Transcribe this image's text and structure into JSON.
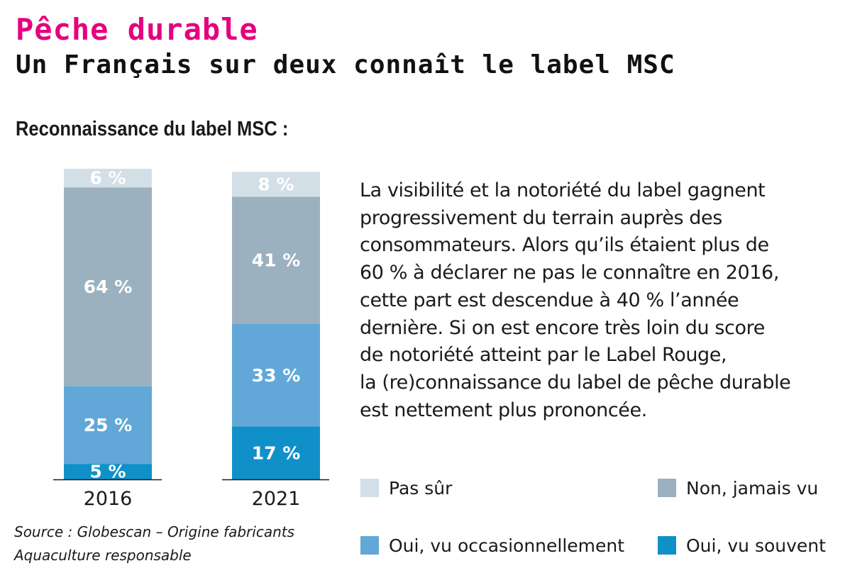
{
  "header": {
    "kicker": "Pêche durable",
    "headline": "Un Français sur deux connaît le label MSC"
  },
  "chart_data": {
    "type": "bar",
    "stacked": true,
    "title": "Reconnaissance du label MSC :",
    "categories": [
      "2016",
      "2021"
    ],
    "ylim": [
      0,
      100
    ],
    "unit": "%",
    "series": [
      {
        "name": "Oui, vu souvent",
        "values": [
          5,
          17
        ],
        "color": "#1090c8",
        "labels": [
          "5 %",
          "17 %"
        ]
      },
      {
        "name": "Oui, vu occasionnellement",
        "values": [
          25,
          33
        ],
        "color": "#61a8d9",
        "labels": [
          "25 %",
          "33 %"
        ]
      },
      {
        "name": "Non, jamais vu",
        "values": [
          64,
          41
        ],
        "color": "#9cb1c0",
        "labels": [
          "64 %",
          "41 %"
        ]
      },
      {
        "name": "Pas sûr",
        "values": [
          6,
          8
        ],
        "color": "#d2dfe7",
        "labels": [
          "6 %",
          "8 %"
        ]
      }
    ],
    "legend_position": "bottom-right"
  },
  "body_text": {
    "lines": [
      "La visibilité et la notoriété du label gagnent",
      "progressivement du terrain auprès des",
      "consommateurs. Alors qu’ils étaient plus de",
      "60 % à déclarer ne pas le connaître en 2016,",
      "cette part est descendue à 40 % l’année",
      "dernière. Si on est encore très loin du score",
      "de notoriété atteint par le Label Rouge,",
      "la (re)connaissance du label de pêche durable",
      "est nettement plus prononcée."
    ]
  },
  "legend": {
    "items": [
      {
        "label": "Pas sûr",
        "color": "#d2dfe7"
      },
      {
        "label": "Non, jamais vu",
        "color": "#9cb1c0"
      },
      {
        "label": "Oui, vu occasionnellement",
        "color": "#61a8d9"
      },
      {
        "label": "Oui, vu souvent",
        "color": "#1090c8"
      }
    ]
  },
  "source": {
    "line1": "Source : Globescan – Origine fabricants",
    "line2": "Aquaculture responsable"
  }
}
